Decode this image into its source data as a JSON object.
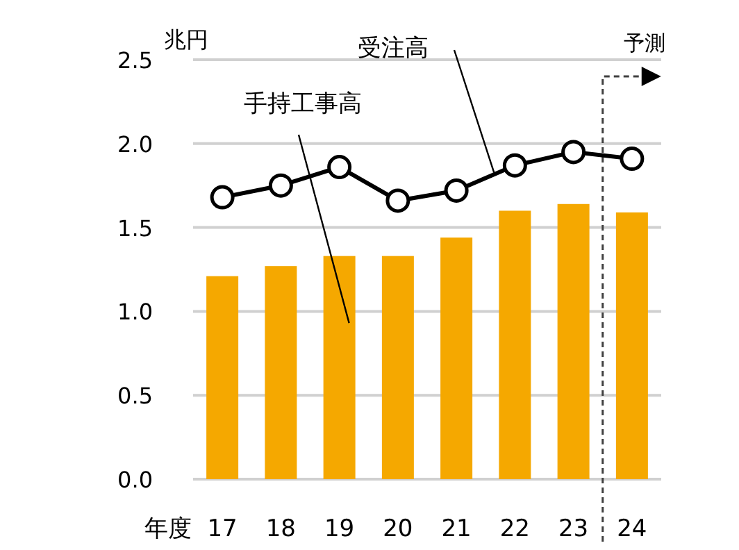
{
  "chart_data": {
    "type": "bar",
    "xlabel": "年度",
    "ylabel": "兆円",
    "categories": [
      "17",
      "18",
      "19",
      "20",
      "21",
      "22",
      "23",
      "24"
    ],
    "series": [
      {
        "name": "手持工事高",
        "color": "#f5a800",
        "values": [
          1.21,
          1.27,
          1.33,
          1.33,
          1.44,
          1.6,
          1.64,
          1.59
        ]
      },
      {
        "name": "受注高",
        "type": "line",
        "color": "#000000",
        "values": [
          1.68,
          1.75,
          1.86,
          1.66,
          1.72,
          1.87,
          1.95,
          1.91
        ]
      }
    ],
    "ylim": [
      0,
      2.5
    ],
    "yticks": [
      {
        "value": 0,
        "label": "0.0"
      },
      0.5,
      {
        "value": 1,
        "label": "1.0"
      },
      1.5,
      {
        "value": 2,
        "label": "2.0"
      },
      2.5
    ],
    "grid": "y",
    "marker": "circle",
    "line_style": "solid",
    "annotations": [
      "予測"
    ]
  }
}
